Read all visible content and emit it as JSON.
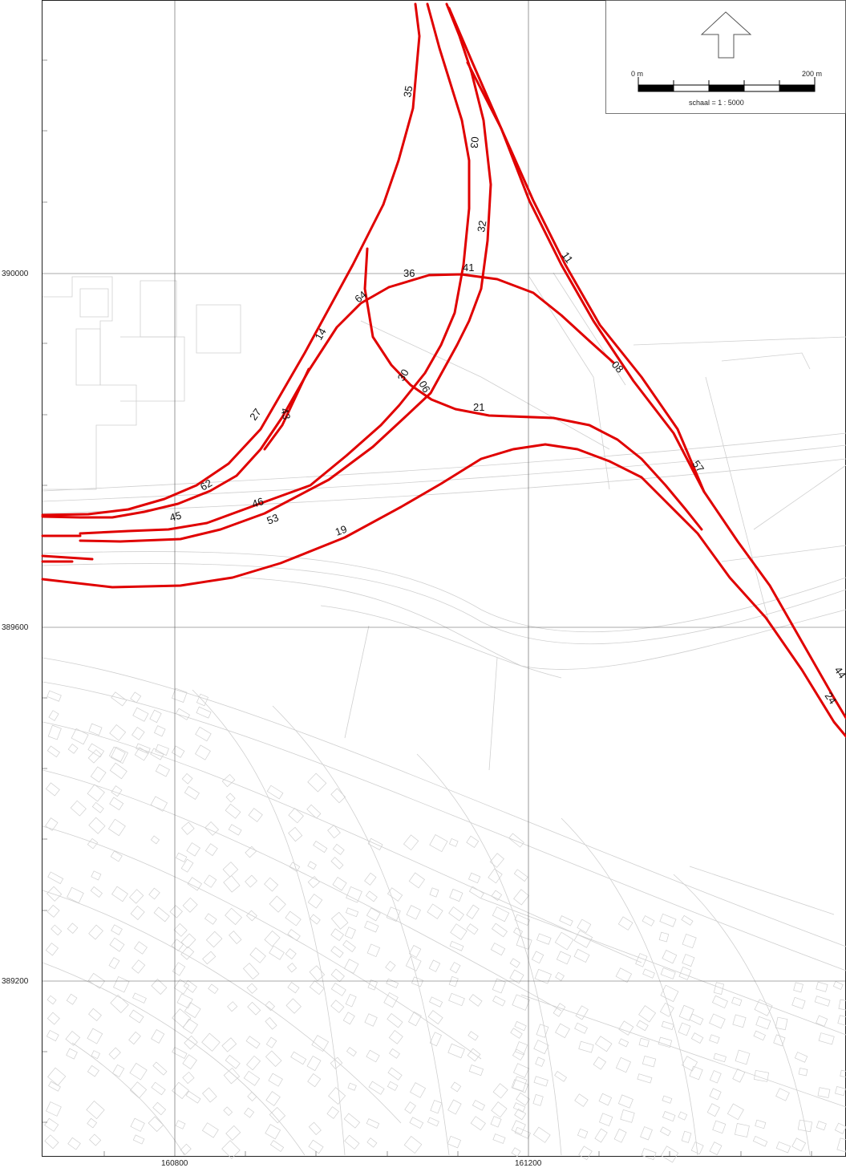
{
  "map": {
    "grid": {
      "x_labels": [
        "160800",
        "161200"
      ],
      "y_labels": [
        "390000",
        "389600",
        "389200"
      ]
    },
    "scalebar": {
      "start_label": "0 m",
      "end_label": "200 m",
      "scale_text": "schaal = 1 : 5000"
    },
    "north_arrow_icon": "up-arrow-icon",
    "route_color": "#e00000",
    "route_labels": [
      "35",
      "03",
      "32",
      "41",
      "36",
      "64",
      "14",
      "11",
      "08",
      "27",
      "43",
      "30",
      "06",
      "21",
      "62",
      "45",
      "46",
      "53",
      "19",
      "57",
      "44",
      "24"
    ]
  }
}
